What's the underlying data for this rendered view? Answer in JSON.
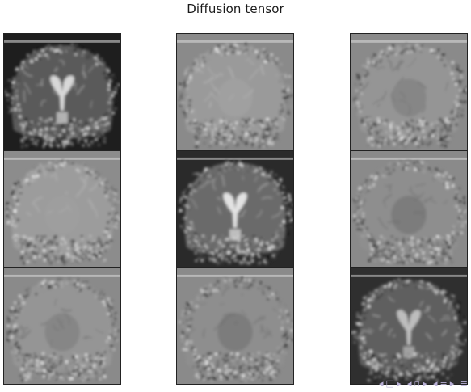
{
  "figure": {
    "title": "Diffusion tensor"
  },
  "panels": [
    {
      "row": 0,
      "col": 0,
      "contrast": "high",
      "background": "#1e1e1e",
      "tissue": "#5a5a5a",
      "ventricle": "#d8d8d8"
    },
    {
      "row": 0,
      "col": 1,
      "contrast": "low",
      "background": "#8a8a8a",
      "tissue": "#9a9a9a",
      "ventricle": "#a5a5a5"
    },
    {
      "row": 0,
      "col": 2,
      "contrast": "low",
      "background": "#8a8a8a",
      "tissue": "#959595",
      "ventricle": "#7a7a7a"
    },
    {
      "row": 1,
      "col": 0,
      "contrast": "low",
      "background": "#8c8c8c",
      "tissue": "#9c9c9c",
      "ventricle": "#a0a0a0"
    },
    {
      "row": 1,
      "col": 1,
      "contrast": "high",
      "background": "#2a2a2a",
      "tissue": "#6a6a6a",
      "ventricle": "#e2e2e2"
    },
    {
      "row": 1,
      "col": 2,
      "contrast": "low",
      "background": "#8a8a8a",
      "tissue": "#8e8e8e",
      "ventricle": "#6c6c6c"
    },
    {
      "row": 2,
      "col": 0,
      "contrast": "low",
      "background": "#8a8a8a",
      "tissue": "#959595",
      "ventricle": "#7a7a7a"
    },
    {
      "row": 2,
      "col": 1,
      "contrast": "low",
      "background": "#8a8a8a",
      "tissue": "#8e8e8e",
      "ventricle": "#6c6c6c"
    },
    {
      "row": 2,
      "col": 2,
      "contrast": "high",
      "background": "#2f2f2f",
      "tissue": "#5e5e5e",
      "ventricle": "#bdbdbd"
    }
  ],
  "nav_icons": [
    "left-arrow-icon",
    "frame-icon",
    "right-arrow-icon",
    "left-arrow-icon",
    "subsection-icon",
    "right-arrow-icon",
    "left-arrow-icon",
    "section-icon",
    "right-arrow-icon",
    "align-icon"
  ]
}
